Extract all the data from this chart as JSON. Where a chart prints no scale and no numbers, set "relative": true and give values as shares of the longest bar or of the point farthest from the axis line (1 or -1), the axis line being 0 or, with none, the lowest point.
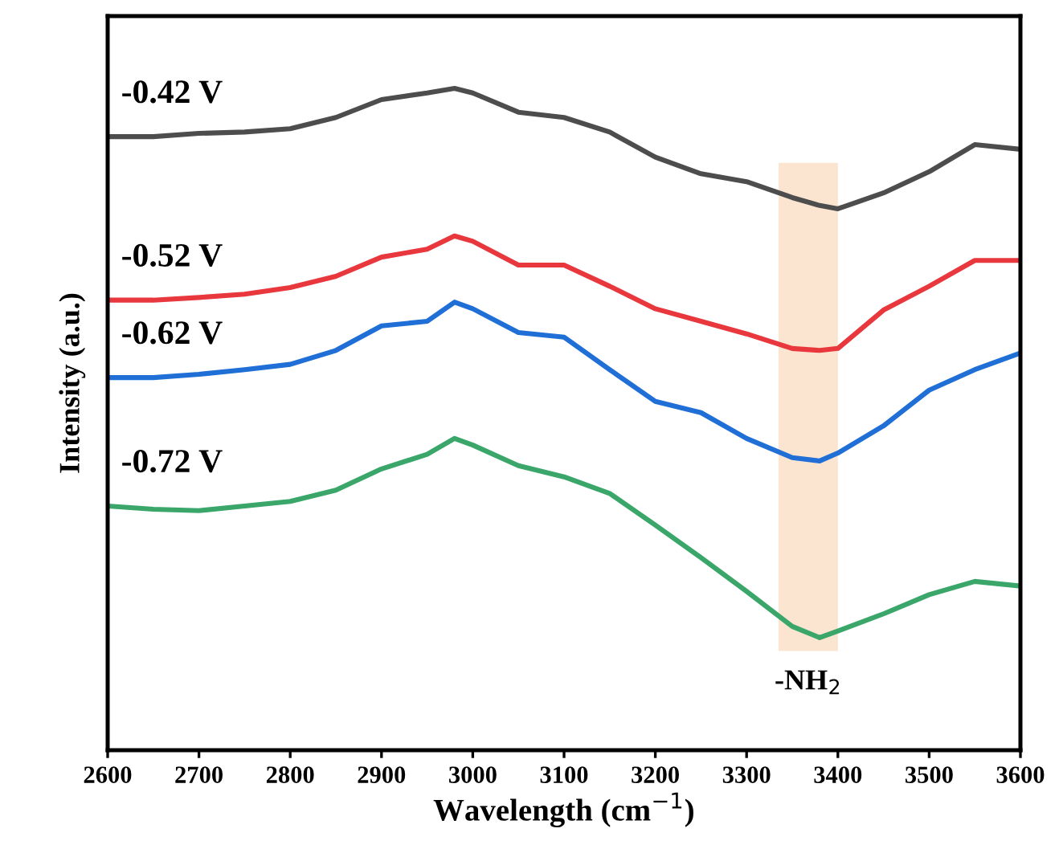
{
  "chart_data": {
    "type": "line",
    "relative": true,
    "xlabel": "Wavelength (cm$^{−1}$)",
    "ylabel": "Intensity (a.u.)",
    "x": [
      2600,
      2650,
      2700,
      2750,
      2800,
      2850,
      2900,
      2950,
      2980,
      3000,
      3050,
      3100,
      3150,
      3200,
      3250,
      3300,
      3350,
      3380,
      3400,
      3450,
      3500,
      3550,
      3600
    ],
    "xlim": [
      2600,
      3600
    ],
    "xticks": [
      2600,
      2700,
      2800,
      2900,
      3000,
      3100,
      3200,
      3300,
      3400,
      3500,
      3600
    ],
    "tick_labels": "x",
    "grid": false,
    "legend": false,
    "marker": "none",
    "line_style": "solid",
    "series": [
      {
        "name": "-0.42 V",
        "color": "#4d4d4d",
        "values": [
          0.927,
          0.927,
          0.932,
          0.934,
          0.939,
          0.956,
          0.983,
          0.993,
          1.0,
          0.993,
          0.964,
          0.956,
          0.934,
          0.896,
          0.871,
          0.859,
          0.835,
          0.823,
          0.818,
          0.842,
          0.874,
          0.915,
          0.908
        ]
      },
      {
        "name": "-0.52 V",
        "color": "#e8383d",
        "values": [
          0.68,
          0.68,
          0.684,
          0.689,
          0.699,
          0.716,
          0.745,
          0.757,
          0.777,
          0.769,
          0.733,
          0.733,
          0.701,
          0.667,
          0.648,
          0.629,
          0.607,
          0.604,
          0.607,
          0.665,
          0.701,
          0.74,
          0.74
        ]
      },
      {
        "name": "-0.62 V",
        "color": "#1f6fd6",
        "values": [
          0.563,
          0.563,
          0.568,
          0.575,
          0.583,
          0.604,
          0.641,
          0.648,
          0.677,
          0.667,
          0.631,
          0.624,
          0.575,
          0.527,
          0.51,
          0.471,
          0.442,
          0.437,
          0.449,
          0.49,
          0.544,
          0.575,
          0.6
        ]
      },
      {
        "name": "-0.72 V",
        "color": "#3aa66a",
        "values": [
          0.369,
          0.364,
          0.362,
          0.369,
          0.376,
          0.393,
          0.425,
          0.447,
          0.471,
          0.461,
          0.43,
          0.413,
          0.388,
          0.34,
          0.291,
          0.24,
          0.187,
          0.17,
          0.18,
          0.206,
          0.235,
          0.255,
          0.248
        ]
      }
    ],
    "bands": [
      {
        "axis": "x",
        "from": 3335,
        "to": 3400,
        "label": "-NH$_{2}$",
        "color": "#fbe5d0"
      }
    ]
  }
}
